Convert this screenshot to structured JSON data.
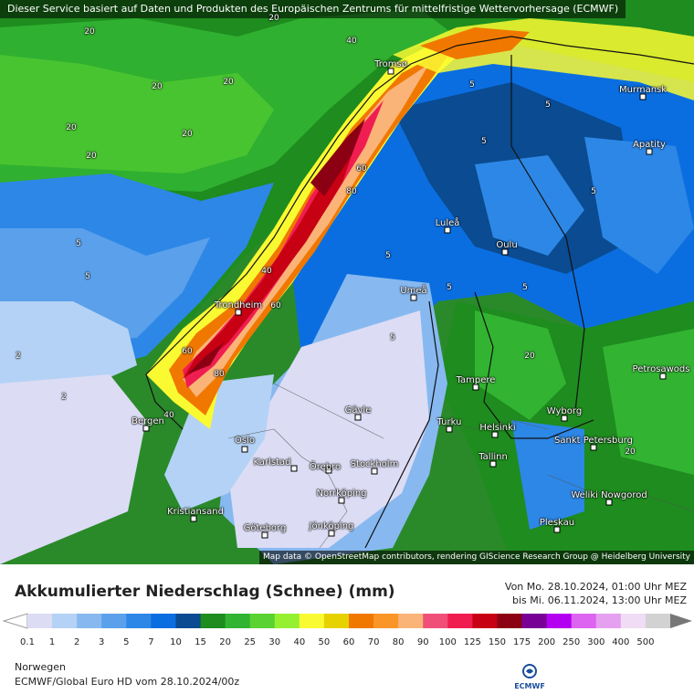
{
  "header": {
    "attribution_top": "Dieser Service basiert auf Daten und Produkten des Europäischen Zentrums für mittelfristige Wettervorhersage (ECMWF)",
    "attribution_bottom": "Map data © OpenStreetMap contributors, rendering GIScience Research Group @ Heidelberg University"
  },
  "map": {
    "cities": [
      "Tromsø",
      "Murmansk",
      "Apatity",
      "Luleå",
      "Oulu",
      "Umeå",
      "Trondheim",
      "Petrosawods",
      "Tampere",
      "Gävle",
      "Bergen",
      "Turku",
      "Helsinki",
      "Wyborg",
      "Oslo",
      "Sankt Petersburg",
      "Karlstad",
      "Örebro",
      "Stockholm",
      "Tallinn",
      "Norrköping",
      "Kristiansand",
      "Weliki Nowgorod",
      "Jönköping",
      "Göteborg",
      "Pleskau"
    ],
    "contour_labels": [
      "20",
      "20",
      "20",
      "20",
      "20",
      "20",
      "20",
      "40",
      "40",
      "40",
      "60",
      "60",
      "60",
      "80",
      "80",
      "5",
      "5",
      "5",
      "5",
      "5",
      "5",
      "5",
      "5",
      "5",
      "5",
      "2",
      "2",
      "20",
      "20"
    ]
  },
  "legend": {
    "title": "Akkumulierter Niederschlag (Schnee) (mm)",
    "period_from": "Von Mo. 28.10.2024, 01:00 Uhr MEZ",
    "period_to": "bis Mi. 06.11.2024, 13:00 Uhr MEZ",
    "ticks": [
      "0.1",
      "1",
      "2",
      "3",
      "5",
      "7",
      "10",
      "15",
      "20",
      "25",
      "30",
      "40",
      "50",
      "60",
      "70",
      "80",
      "90",
      "100",
      "125",
      "150",
      "175",
      "200",
      "250",
      "300",
      "400",
      "500"
    ],
    "colors": [
      "#dcdcf5",
      "#b4d2f5",
      "#87b9f0",
      "#5aa0eb",
      "#2d87e6",
      "#0a6ee1",
      "#0a4b91",
      "#1e8c1e",
      "#32b432",
      "#5ad232",
      "#96f032",
      "#fafa32",
      "#e6d200",
      "#f07800",
      "#fa9628",
      "#fab478",
      "#f05078",
      "#f01e50",
      "#c80014",
      "#8c0014",
      "#780096",
      "#b400f0",
      "#dc64f0",
      "#e6a0f0",
      "#f0dcf5",
      "#d2d2d2"
    ]
  },
  "footer": {
    "region": "Norwegen",
    "model": "ECMWF/Global Euro HD vom  28.10.2024/00z",
    "logo_text": "ECMWF"
  }
}
